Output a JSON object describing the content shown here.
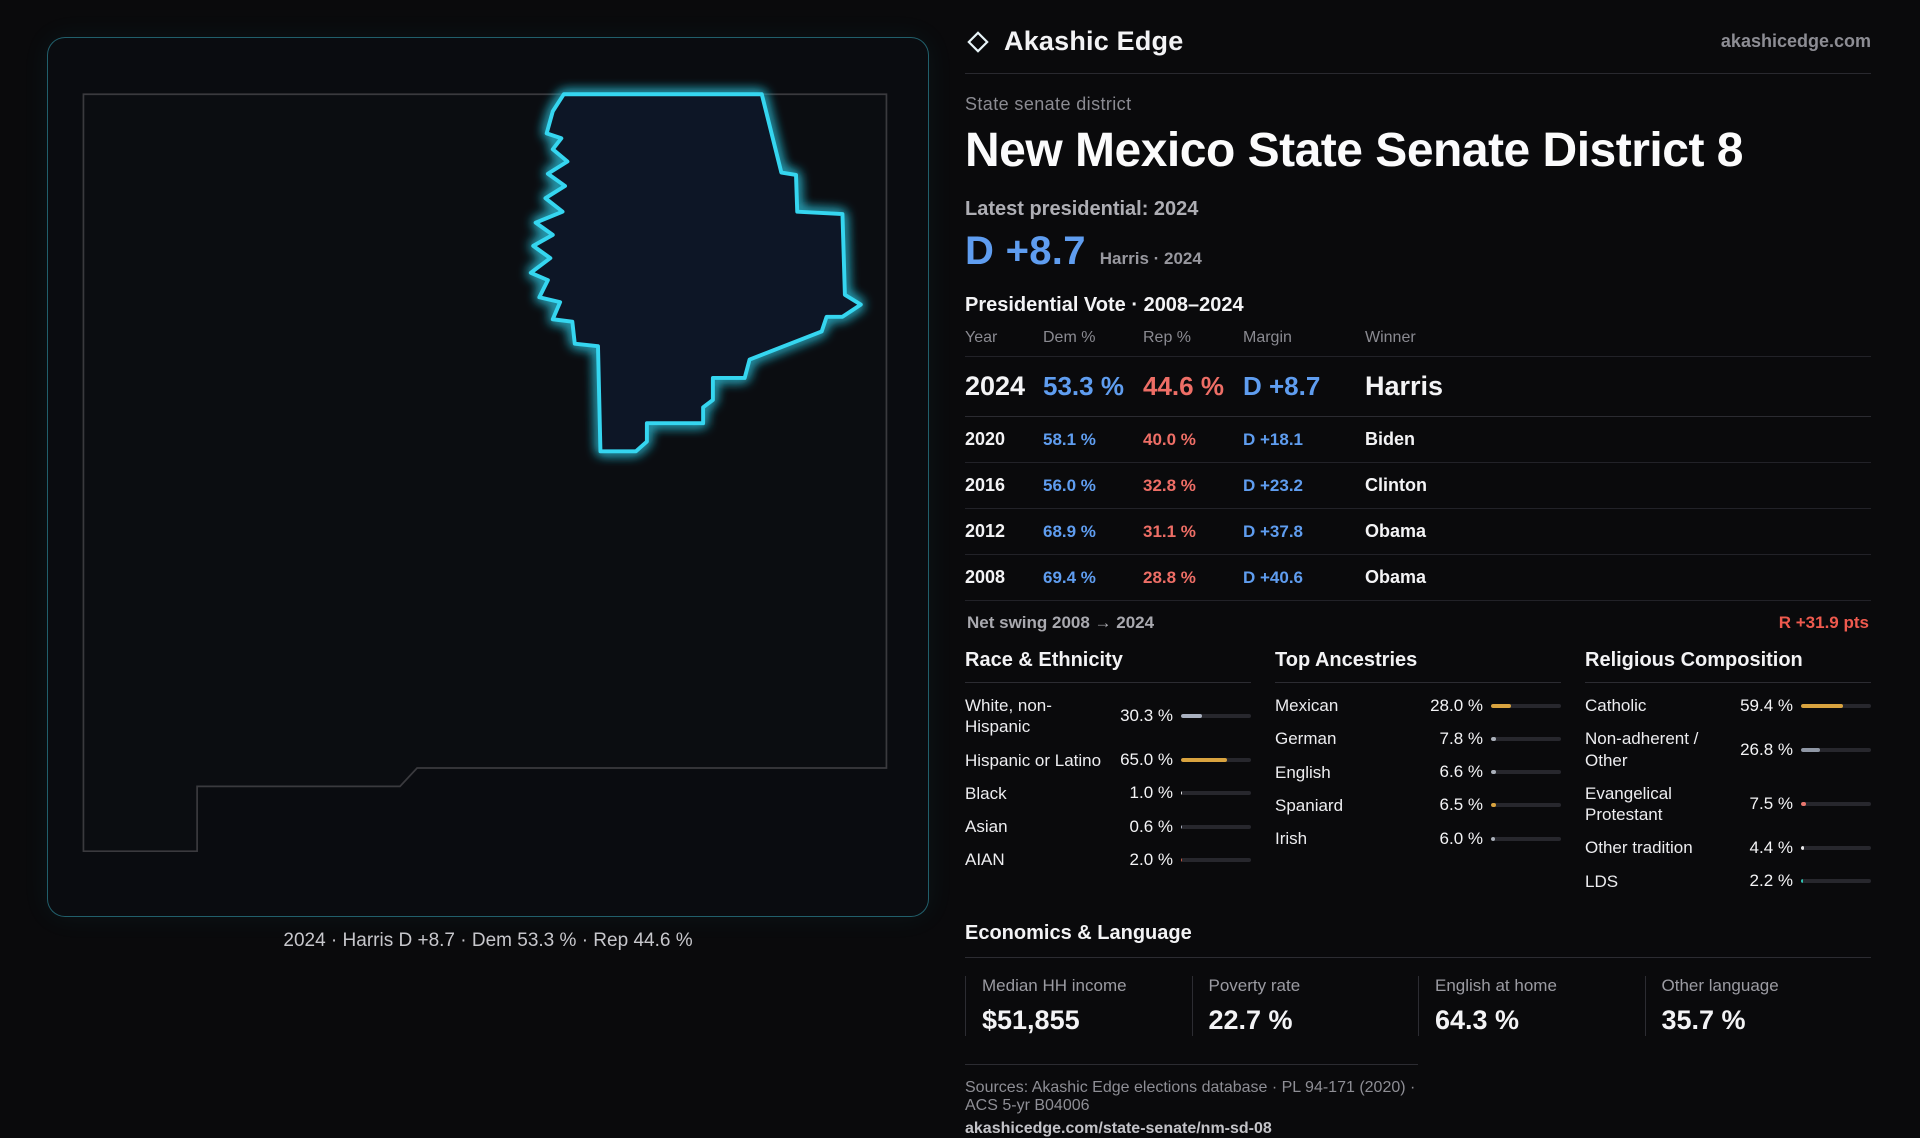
{
  "colors": {
    "dem": "#5f9df0",
    "rep": "#ee6e66",
    "district_glow": "#35d6f0",
    "amber": "#d9a33f"
  },
  "header": {
    "brand": "Akashic Edge",
    "site_link": "akashicedge.com"
  },
  "hero": {
    "kicker": "State senate district",
    "title": "New Mexico State Senate District 8",
    "latest_label": "Latest presidential: 2024",
    "headline_margin": "D +8.7",
    "headline_context": "Harris · 2024"
  },
  "vote_table": {
    "title": "Presidential Vote · 2008–2024",
    "columns": {
      "year": "Year",
      "dem": "Dem %",
      "rep": "Rep %",
      "margin": "Margin",
      "winner": "Winner"
    },
    "rows": [
      {
        "year": "2024",
        "dem": "53.3 %",
        "rep": "44.6 %",
        "margin": "D +8.7",
        "winner": "Harris"
      },
      {
        "year": "2020",
        "dem": "58.1 %",
        "rep": "40.0 %",
        "margin": "D +18.1",
        "winner": "Biden"
      },
      {
        "year": "2016",
        "dem": "56.0 %",
        "rep": "32.8 %",
        "margin": "D +23.2",
        "winner": "Clinton"
      },
      {
        "year": "2012",
        "dem": "68.9 %",
        "rep": "31.1 %",
        "margin": "D +37.8",
        "winner": "Obama"
      },
      {
        "year": "2008",
        "dem": "69.4 %",
        "rep": "28.8 %",
        "margin": "D +40.6",
        "winner": "Obama"
      }
    ]
  },
  "net_swing": {
    "label": "Net swing 2008 → 2024",
    "value": "R +31.9 pts"
  },
  "demographic_groups": [
    {
      "title": "Race & Ethnicity",
      "rows": [
        {
          "label": "White, non-Hispanic",
          "value": "30.3 %",
          "pct": 30.3,
          "color": "#a9b0bf"
        },
        {
          "label": "Hispanic or Latino",
          "value": "65.0 %",
          "pct": 65.0,
          "color": "#d9a33f"
        },
        {
          "label": "Black",
          "value": "1.0 %",
          "pct": 1.0,
          "color": "#e8e8ea"
        },
        {
          "label": "Asian",
          "value": "0.6 %",
          "pct": 0.6,
          "color": "#a9b0bf"
        },
        {
          "label": "AIAN",
          "value": "2.0 %",
          "pct": 2.0,
          "color": "#c05a45"
        }
      ]
    },
    {
      "title": "Top Ancestries",
      "rows": [
        {
          "label": "Mexican",
          "value": "28.0 %",
          "pct": 28.0,
          "color": "#d9a33f"
        },
        {
          "label": "German",
          "value": "7.8 %",
          "pct": 7.8,
          "color": "#aab0ba"
        },
        {
          "label": "English",
          "value": "6.6 %",
          "pct": 6.6,
          "color": "#aab0ba"
        },
        {
          "label": "Spaniard",
          "value": "6.5 %",
          "pct": 6.5,
          "color": "#d9a33f"
        },
        {
          "label": "Irish",
          "value": "6.0 %",
          "pct": 6.0,
          "color": "#aab0ba"
        }
      ]
    },
    {
      "title": "Religious Composition",
      "rows": [
        {
          "label": "Catholic",
          "value": "59.4 %",
          "pct": 59.4,
          "color": "#d9a33f"
        },
        {
          "label": "Non-adherent / Other",
          "value": "26.8 %",
          "pct": 26.8,
          "color": "#8f97a5"
        },
        {
          "label": "Evangelical Protestant",
          "value": "7.5 %",
          "pct": 7.5,
          "color": "#e8766e"
        },
        {
          "label": "Other tradition",
          "value": "4.4 %",
          "pct": 4.4,
          "color": "#e8e8ea"
        },
        {
          "label": "LDS",
          "value": "2.2 %",
          "pct": 2.2,
          "color": "#2fc3b2"
        }
      ]
    }
  ],
  "economics": {
    "title": "Economics & Language",
    "stats": [
      {
        "label": "Median HH income",
        "value": "$51,855"
      },
      {
        "label": "Poverty rate",
        "value": "22.7 %"
      },
      {
        "label": "English at home",
        "value": "64.3 %"
      },
      {
        "label": "Other language",
        "value": "35.7 %"
      }
    ]
  },
  "map_caption": "2024 · Harris D +8.7 · Dem 53.3 % · Rep 44.6 %",
  "footer": {
    "sources": "Sources: Akashic Edge elections database · PL 94-171 (2020) · ACS 5-yr B04006",
    "permalink": "akashicedge.com/state-senate/nm-sd-08"
  }
}
